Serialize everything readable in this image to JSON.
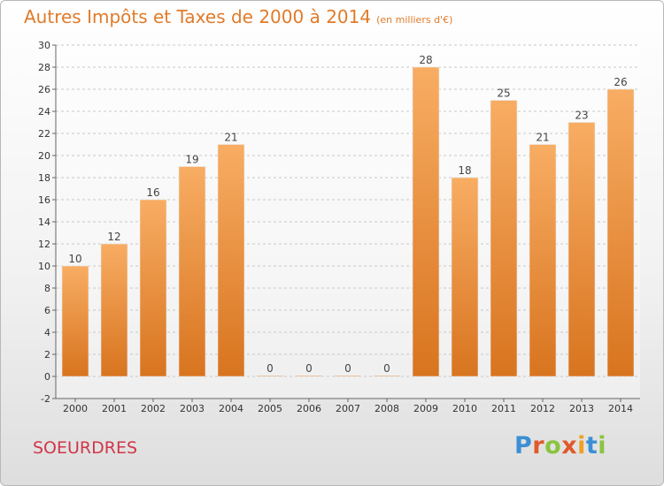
{
  "header": {
    "title": "Autres Impôts et Taxes de 2000 à 2014",
    "subtitle": "(en milliers d'€)"
  },
  "footer": {
    "commune": "SOEURDRES",
    "logo_text": "Proxiti"
  },
  "colors": {
    "title": "#e07b2a",
    "commune": "#d0374a",
    "bar_top": "#f8ad63",
    "bar_bottom": "#d8741f",
    "logo_letters": [
      "#3a8fd6",
      "#e05a2a",
      "#8ac43f",
      "#e05a2a",
      "#f0a024",
      "#3a8fd6",
      "#8ac43f"
    ]
  },
  "chart_data": {
    "type": "bar",
    "categories": [
      "2000",
      "2001",
      "2002",
      "2003",
      "2004",
      "2005",
      "2006",
      "2007",
      "2008",
      "2009",
      "2010",
      "2011",
      "2012",
      "2013",
      "2014"
    ],
    "values": [
      10,
      12,
      16,
      19,
      21,
      0,
      0,
      0,
      0,
      28,
      18,
      25,
      21,
      23,
      26
    ],
    "title": "Autres Impôts et Taxes de 2000 à 2014",
    "subtitle": "(en milliers d'€)",
    "ylim": [
      -2,
      30
    ],
    "yticks": [
      -2,
      0,
      2,
      4,
      6,
      8,
      10,
      12,
      14,
      16,
      18,
      20,
      22,
      24,
      26,
      28,
      30
    ],
    "grid": true,
    "data_labels": true
  }
}
